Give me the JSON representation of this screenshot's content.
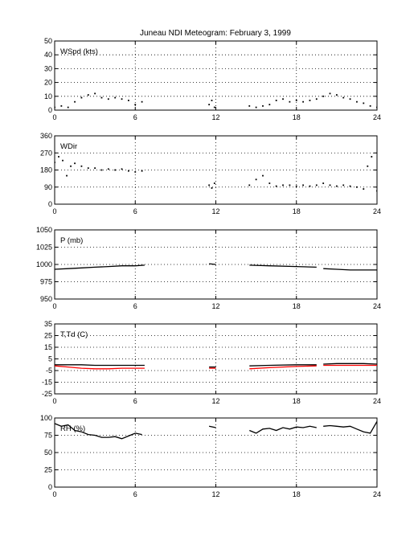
{
  "title": "Juneau NDI Meteogram:  February  3, 1999",
  "chart_data": [
    {
      "type": "scatter",
      "label": "WSpd (kts)",
      "xlim": [
        0,
        24
      ],
      "xticks": [
        0,
        6,
        12,
        18,
        24
      ],
      "ylim": [
        0,
        50
      ],
      "yticks": [
        0,
        10,
        20,
        30,
        40,
        50
      ],
      "grid": true,
      "series": [
        {
          "color": "#000000",
          "segments": [
            {
              "x": [
                0,
                0.5,
                1,
                1.5,
                2,
                2.5,
                3,
                3.5,
                4,
                4.5,
                5,
                5.5,
                6,
                6.5
              ],
              "y": [
                2,
                3,
                2,
                6,
                9,
                11,
                12,
                9,
                8,
                9,
                8,
                7,
                4,
                6
              ]
            },
            {
              "x": [
                11.5,
                11.7,
                11.9
              ],
              "y": [
                4,
                7,
                2
              ]
            },
            {
              "x": [
                14.5,
                15,
                15.5,
                16,
                16.5,
                17,
                17.5,
                18,
                18.5,
                19,
                19.5
              ],
              "y": [
                3,
                2,
                3,
                4,
                7,
                8,
                6,
                7,
                6,
                7,
                8
              ]
            },
            {
              "x": [
                20,
                20.5,
                21,
                21.5,
                22,
                22.5,
                23,
                23.5,
                24
              ],
              "y": [
                10,
                12,
                11,
                9,
                8,
                6,
                5,
                3,
                2
              ]
            }
          ]
        }
      ]
    },
    {
      "type": "scatter",
      "label": "WDir",
      "xlim": [
        0,
        24
      ],
      "xticks": [
        0,
        6,
        12,
        18,
        24
      ],
      "ylim": [
        0,
        360
      ],
      "yticks": [
        0,
        90,
        180,
        270,
        360
      ],
      "grid": true,
      "series": [
        {
          "color": "#000000",
          "segments": [
            {
              "x": [
                0,
                0.3,
                0.6,
                0.9,
                1.2,
                1.5,
                2,
                2.5,
                3,
                3.5,
                4,
                4.5,
                5,
                5.5,
                6,
                6.5
              ],
              "y": [
                220,
                250,
                230,
                150,
                200,
                215,
                200,
                190,
                190,
                180,
                185,
                180,
                185,
                175,
                170,
                175
              ]
            },
            {
              "x": [
                11.5,
                11.7,
                11.9
              ],
              "y": [
                100,
                85,
                110
              ]
            },
            {
              "x": [
                14.5,
                15,
                15.5,
                16,
                16.5,
                17,
                17.5,
                18,
                18.5,
                19,
                19.5
              ],
              "y": [
                100,
                130,
                150,
                110,
                95,
                100,
                100,
                95,
                100,
                95,
                100
              ]
            },
            {
              "x": [
                20,
                20.5,
                21,
                21.5,
                22,
                22.5,
                23,
                23.3,
                23.6,
                24
              ],
              "y": [
                110,
                100,
                95,
                100,
                95,
                90,
                80,
                200,
                250,
                70
              ]
            }
          ]
        }
      ]
    },
    {
      "type": "line",
      "label": "P (mb)",
      "xlim": [
        0,
        24
      ],
      "xticks": [
        0,
        6,
        12,
        18,
        24
      ],
      "ylim": [
        950,
        1050
      ],
      "yticks": [
        950,
        975,
        1000,
        1025,
        1050
      ],
      "grid": true,
      "series": [
        {
          "color": "#000000",
          "segments": [
            {
              "x": [
                0,
                1,
                2,
                3,
                4,
                5,
                6,
                6.7
              ],
              "y": [
                993,
                994,
                995,
                996,
                997,
                998,
                998,
                999
              ]
            },
            {
              "x": [
                11.5,
                12
              ],
              "y": [
                1001,
                1000
              ]
            },
            {
              "x": [
                14.5,
                16,
                18,
                19.5
              ],
              "y": [
                999,
                998,
                997,
                996
              ]
            },
            {
              "x": [
                20,
                21,
                22,
                23,
                24
              ],
              "y": [
                994,
                993,
                992,
                992,
                992
              ]
            }
          ]
        }
      ]
    },
    {
      "type": "line",
      "label": "T,Td (C)",
      "xlim": [
        0,
        24
      ],
      "xticks": [
        0,
        6,
        12,
        18,
        24
      ],
      "ylim": [
        -25,
        35
      ],
      "yticks": [
        -25,
        -15,
        -5,
        5,
        15,
        25,
        35
      ],
      "grid": true,
      "series": [
        {
          "name": "T",
          "color": "#000000",
          "segments": [
            {
              "x": [
                0,
                1,
                2,
                3,
                4,
                5,
                6,
                6.7
              ],
              "y": [
                0,
                0,
                0,
                -0.5,
                -0.5,
                -0.5,
                -0.5,
                -0.5
              ]
            },
            {
              "x": [
                11.5,
                12
              ],
              "y": [
                -2,
                -2
              ]
            },
            {
              "x": [
                14.5,
                16,
                18,
                19.5
              ],
              "y": [
                -1,
                -0.5,
                0,
                0
              ]
            },
            {
              "x": [
                20,
                21,
                22,
                23,
                24
              ],
              "y": [
                0.5,
                1,
                1,
                1,
                0.5
              ]
            }
          ]
        },
        {
          "name": "Td",
          "color": "#ff0000",
          "segments": [
            {
              "x": [
                0,
                1,
                2,
                3,
                4,
                5,
                6,
                6.7
              ],
              "y": [
                -1,
                -2,
                -3,
                -3.5,
                -3.5,
                -3,
                -3,
                -3
              ]
            },
            {
              "x": [
                11.5,
                12
              ],
              "y": [
                -3,
                -3
              ]
            },
            {
              "x": [
                14.5,
                16,
                18,
                19.5
              ],
              "y": [
                -3.5,
                -2.5,
                -1.5,
                -1
              ]
            },
            {
              "x": [
                20,
                21,
                22,
                23,
                24
              ],
              "y": [
                -0.5,
                -0.5,
                -0.5,
                -0.5,
                -0.5
              ]
            }
          ]
        }
      ]
    },
    {
      "type": "line",
      "label": "RH (%)",
      "xlim": [
        0,
        24
      ],
      "xticks": [
        0,
        6,
        12,
        18,
        24
      ],
      "ylim": [
        0,
        100
      ],
      "yticks": [
        0,
        25,
        50,
        75,
        100
      ],
      "grid": true,
      "series": [
        {
          "color": "#000000",
          "segments": [
            {
              "x": [
                0,
                0.5,
                1,
                1.5,
                2,
                2.5,
                3,
                3.5,
                4,
                4.5,
                5,
                5.5,
                6,
                6.5
              ],
              "y": [
                92,
                88,
                90,
                82,
                80,
                76,
                75,
                72,
                72,
                73,
                70,
                74,
                78,
                76
              ]
            },
            {
              "x": [
                11.5,
                12
              ],
              "y": [
                88,
                86
              ]
            },
            {
              "x": [
                14.5,
                15,
                15.5,
                16,
                16.5,
                17,
                17.5,
                18,
                18.5,
                19,
                19.5
              ],
              "y": [
                82,
                78,
                84,
                85,
                82,
                86,
                84,
                87,
                86,
                88,
                86
              ]
            },
            {
              "x": [
                20,
                20.5,
                21,
                21.5,
                22,
                22.5,
                23,
                23.5,
                24
              ],
              "y": [
                88,
                89,
                88,
                87,
                88,
                84,
                80,
                78,
                95
              ]
            }
          ]
        }
      ]
    }
  ]
}
